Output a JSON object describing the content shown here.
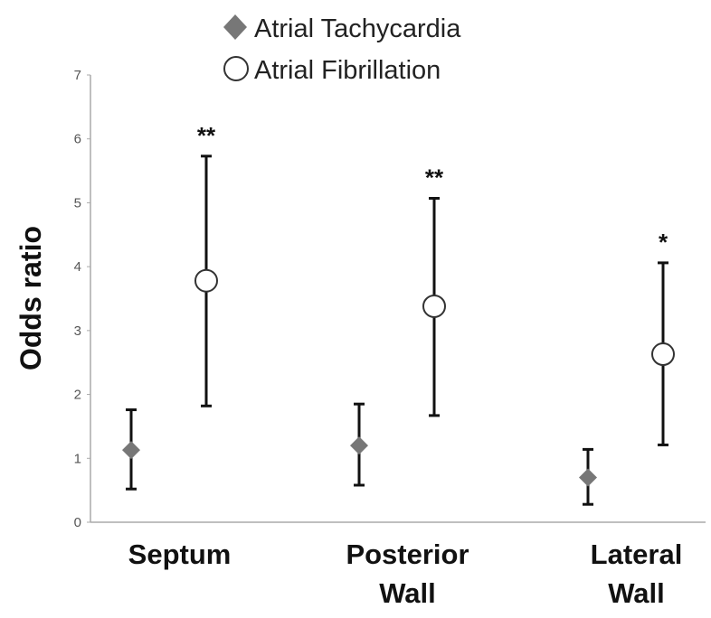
{
  "chart_data": {
    "type": "scatter",
    "title": "",
    "xlabel": "",
    "ylabel": "Odds ratio",
    "ylim": [
      0,
      7
    ],
    "yticks": [
      "0",
      "1",
      "2",
      "3",
      "4",
      "5",
      "6",
      "7"
    ],
    "categories": [
      "Septum",
      "Posterior Wall",
      "Lateral Wall"
    ],
    "category_lines": [
      [
        "Septum"
      ],
      [
        "Posterior",
        "Wall"
      ],
      [
        "Lateral",
        "Wall"
      ]
    ],
    "legend_position": "top",
    "grid": false,
    "series": [
      {
        "name": "Atrial Tachycardia",
        "marker": "diamond",
        "color": "#777777",
        "values": [
          1.13,
          1.2,
          0.7
        ],
        "ci_low": [
          0.52,
          0.58,
          0.28
        ],
        "ci_high": [
          1.76,
          1.85,
          1.14
        ],
        "annotations": [
          "",
          "",
          ""
        ]
      },
      {
        "name": "Atrial Fibrillation",
        "marker": "circle",
        "color": "#ffffff",
        "values": [
          3.78,
          3.38,
          2.63
        ],
        "ci_low": [
          1.82,
          1.67,
          1.21
        ],
        "ci_high": [
          5.73,
          5.07,
          4.06
        ],
        "annotations": [
          "**",
          "**",
          "*"
        ]
      }
    ]
  }
}
